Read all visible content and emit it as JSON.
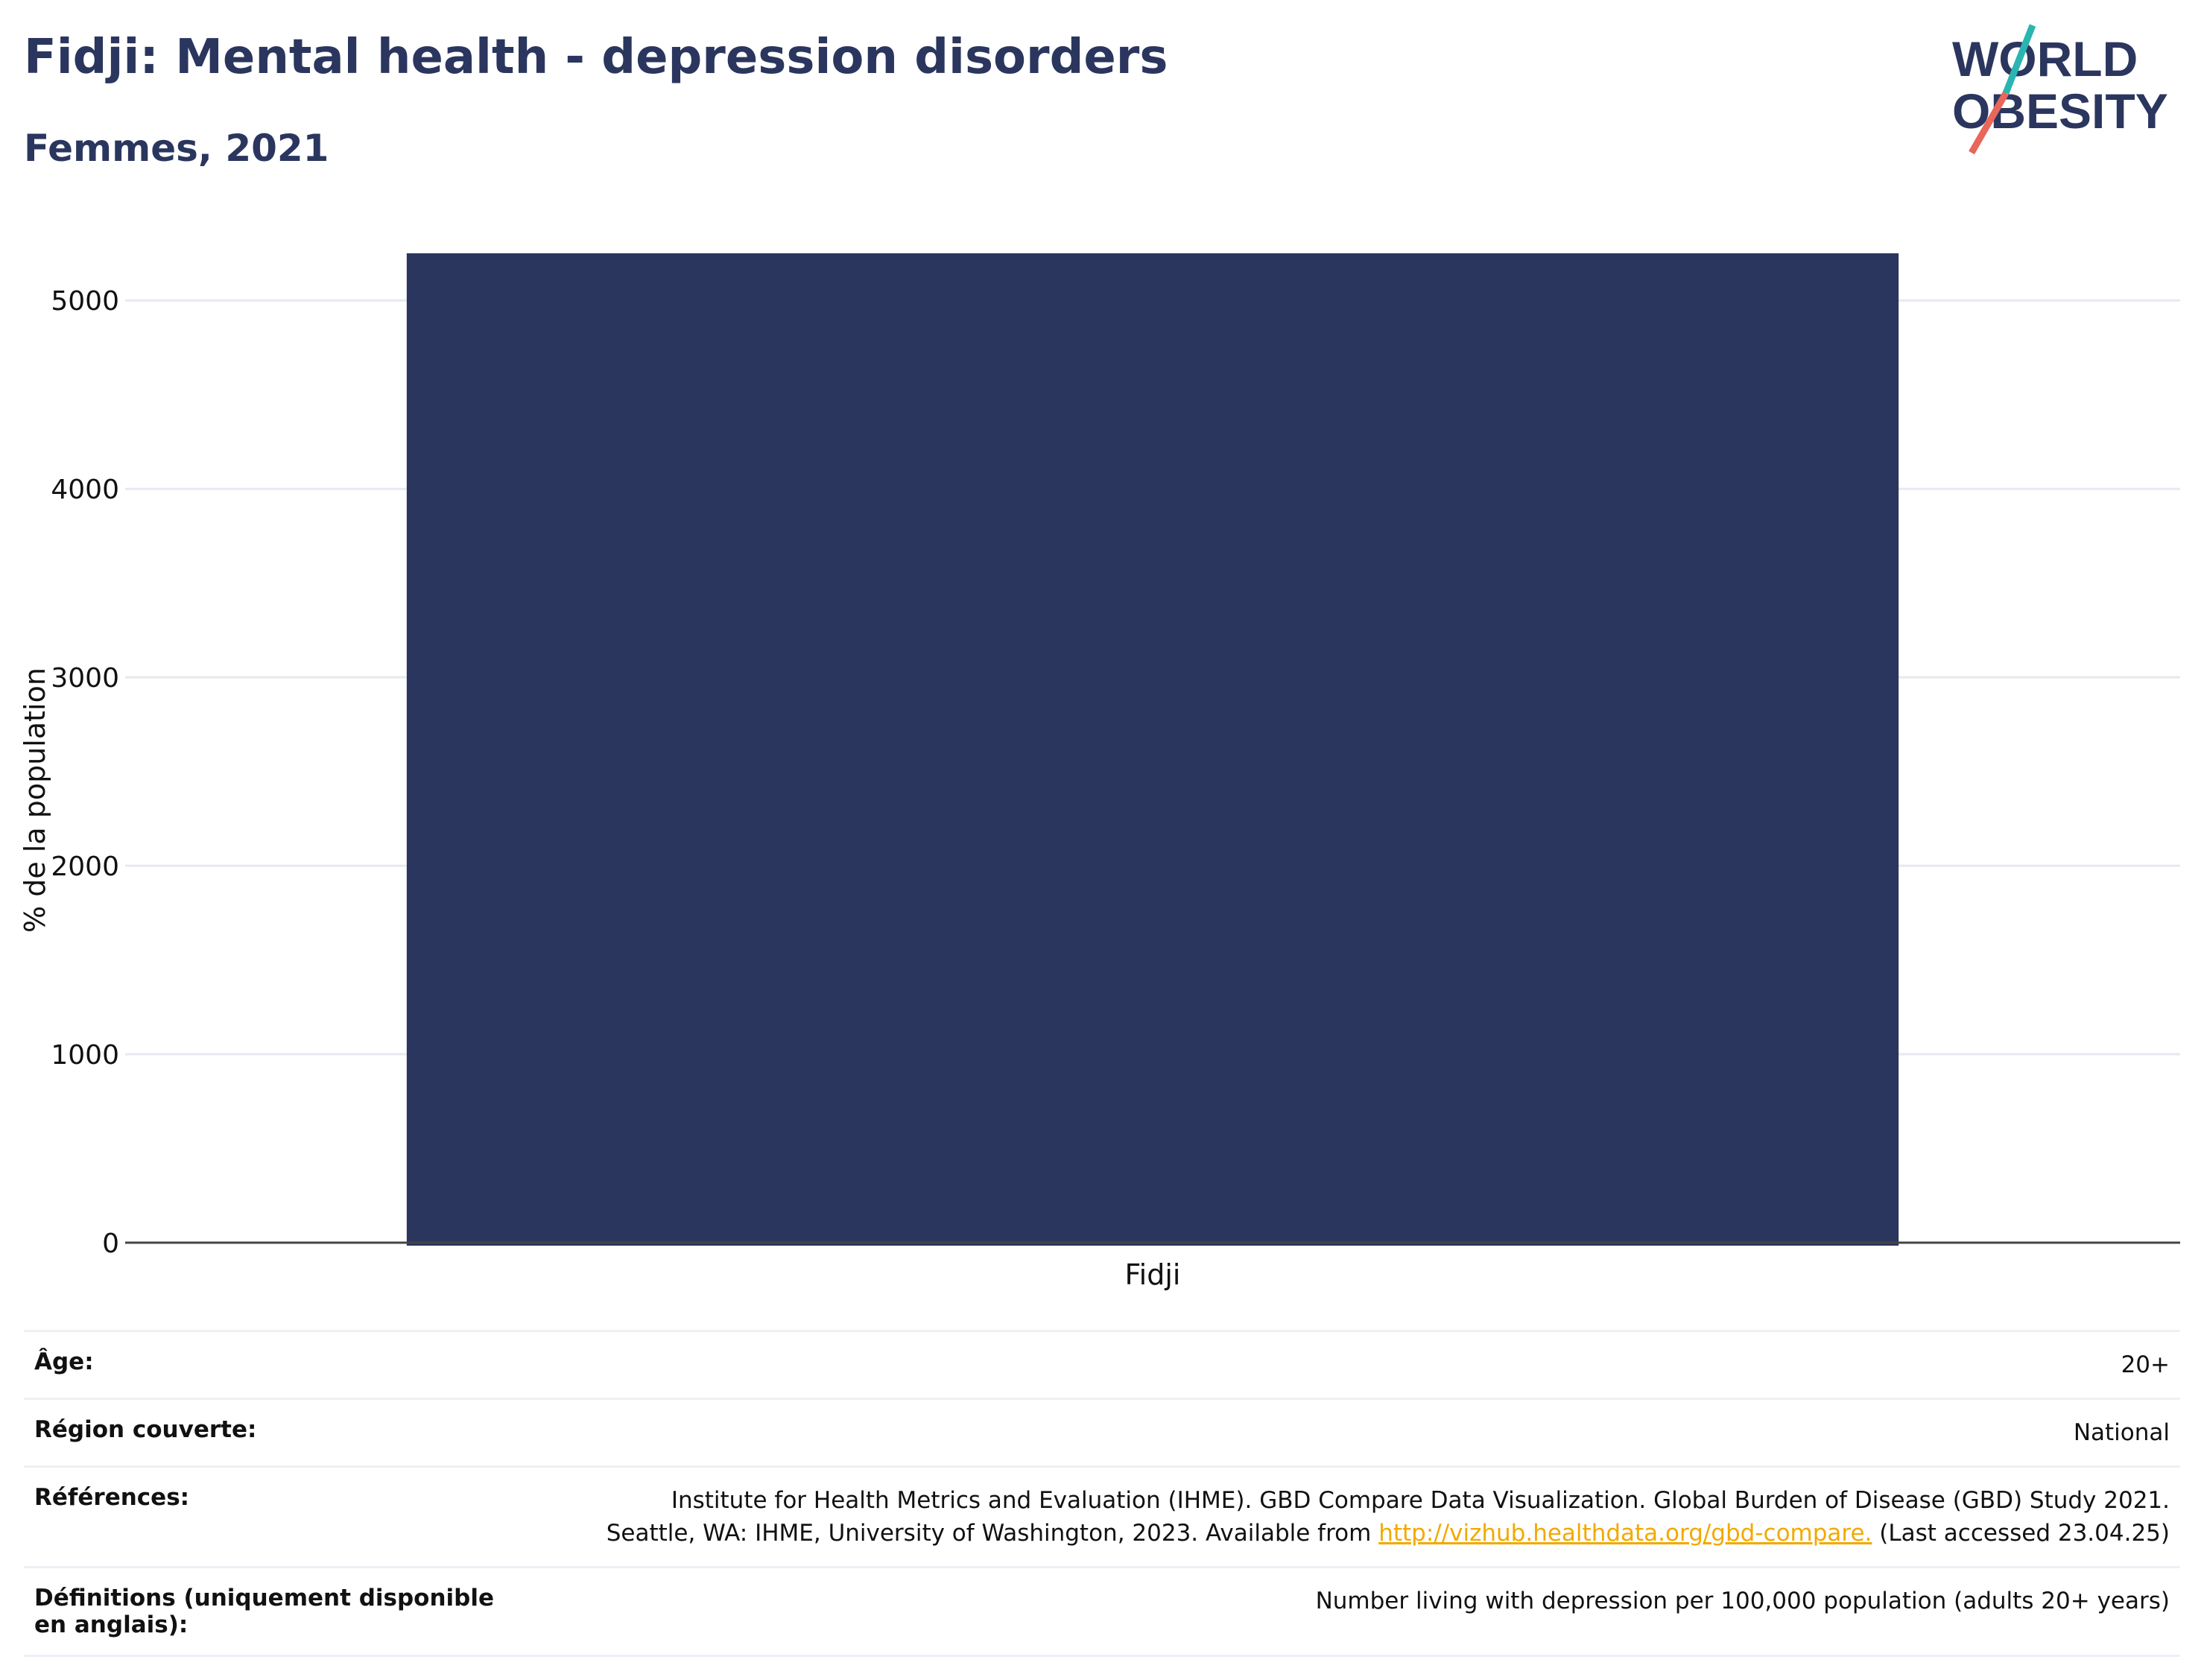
{
  "header": {
    "title": "Fidji: Mental health - depression disorders",
    "subtitle": "Femmes, 2021"
  },
  "logo": {
    "line1": "WORLD",
    "line2": "OBESITY",
    "colors": {
      "text": "#2b365f",
      "slash_top": "#2ab5b0",
      "slash_bottom": "#e8665a"
    }
  },
  "colors": {
    "bar": "#2b365f",
    "grid": "#e6e9ef",
    "axis": "#444444"
  },
  "chart_data": {
    "type": "bar",
    "categories": [
      "Fidji"
    ],
    "values": [
      5260
    ],
    "ylabel": "% de la population",
    "ylim": [
      0,
      5250
    ],
    "yticks": [
      0,
      1000,
      2000,
      3000,
      4000,
      5000
    ],
    "grid": true
  },
  "info": {
    "rows": [
      {
        "label": "Âge:",
        "value": "20+"
      },
      {
        "label": "Région couverte:",
        "value": "National"
      },
      {
        "label": "Références:",
        "value_line1": "Institute for Health Metrics and Evaluation (IHME). GBD Compare Data Visualization. Global Burden of Disease (GBD) Study 2021.",
        "value_line2_pre": "Seattle, WA: IHME, University of Washington, 2023. Available from ",
        "link_text": "http://vizhub.healthdata.org/gbd-compare.",
        "value_line2_post": " (Last accessed 23.04.25)"
      },
      {
        "label": "Définitions (uniquement disponible en anglais):",
        "value": "Number living with depression per 100,000 population (adults 20+ years)"
      }
    ]
  }
}
